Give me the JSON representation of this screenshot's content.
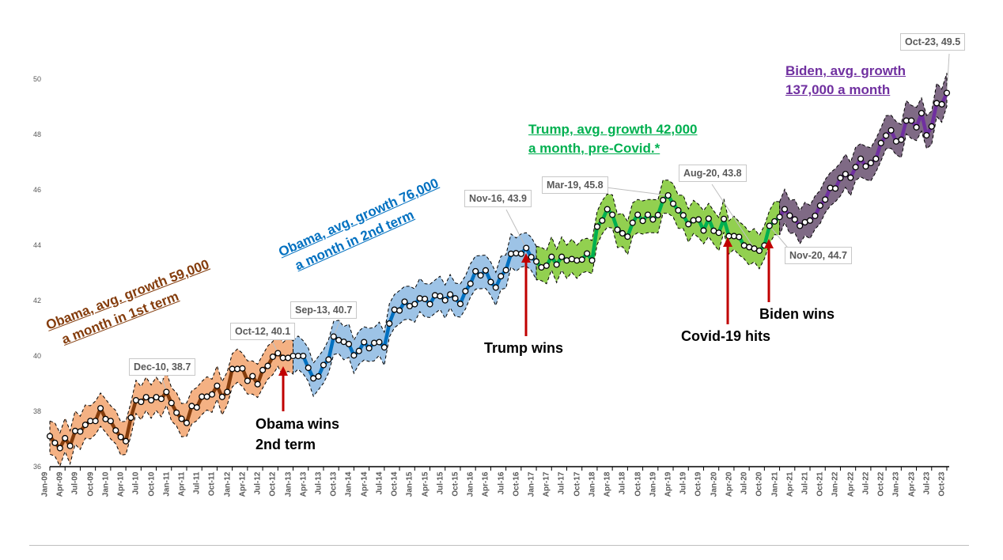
{
  "chart_data": {
    "type": "line",
    "title": "",
    "xlabel": "",
    "ylabel": "",
    "ylim": [
      36,
      50
    ],
    "y_ticks": [
      "36",
      "38",
      "40",
      "42",
      "44",
      "46",
      "48",
      "50"
    ],
    "x_labels": [
      "Jan-09",
      "Apr-09",
      "Jul-09",
      "Oct-09",
      "Jan-10",
      "Apr-10",
      "Jul-10",
      "Oct-10",
      "Jan-11",
      "Apr-11",
      "Jul-11",
      "Oct-11",
      "Jan-12",
      "Apr-12",
      "Jul-12",
      "Oct-12",
      "Jan-13",
      "Apr-13",
      "Jul-13",
      "Oct-13",
      "Jan-14",
      "Apr-14",
      "Jul-14",
      "Oct-14",
      "Jan-15",
      "Apr-15",
      "Jul-15",
      "Oct-15",
      "Jan-16",
      "Apr-16",
      "Jul-16",
      "Oct-16",
      "Jan-17",
      "Apr-17",
      "Jul-17",
      "Oct-17",
      "Jan-18",
      "Apr-18",
      "Jul-18",
      "Oct-18",
      "Jan-19",
      "Apr-19",
      "Jul-19",
      "Oct-19",
      "Jan-20",
      "Apr-20",
      "Jul-20",
      "Oct-20",
      "Jan-21",
      "Apr-21",
      "Jul-21",
      "Oct-21",
      "Jan-22",
      "Apr-22",
      "Jul-22",
      "Oct-22",
      "Jan-23",
      "Apr-23",
      "Jul-23",
      "Oct-23"
    ],
    "x_start": "Jan-09",
    "x_step": "monthly",
    "values": [
      37.1,
      36.86,
      36.67,
      37.03,
      36.75,
      37.29,
      37.27,
      37.51,
      37.65,
      37.65,
      38.11,
      37.72,
      37.65,
      37.31,
      37.07,
      36.92,
      37.77,
      38.4,
      38.34,
      38.51,
      38.4,
      38.51,
      38.45,
      38.7,
      38.3,
      37.95,
      37.73,
      37.58,
      38.19,
      38.14,
      38.53,
      38.53,
      38.61,
      38.92,
      38.52,
      38.7,
      39.53,
      39.53,
      39.55,
      39.1,
      39.27,
      38.98,
      39.49,
      39.64,
      39.97,
      40.1,
      39.93,
      39.93,
      40.0,
      40.0,
      40.0,
      39.57,
      39.19,
      39.26,
      39.67,
      39.87,
      40.7,
      40.57,
      40.51,
      40.43,
      40.02,
      40.18,
      40.5,
      40.28,
      40.47,
      40.5,
      40.31,
      41.17,
      41.67,
      41.64,
      41.96,
      41.8,
      41.87,
      42.08,
      42.06,
      41.87,
      42.19,
      42.16,
      42.01,
      42.22,
      42.08,
      41.88,
      42.34,
      42.61,
      43.06,
      42.91,
      43.09,
      42.67,
      42.47,
      42.88,
      43.1,
      43.69,
      43.71,
      43.69,
      43.9,
      43.57,
      43.41,
      43.2,
      43.26,
      43.58,
      43.3,
      43.58,
      43.45,
      43.5,
      43.45,
      43.48,
      43.7,
      43.45,
      44.67,
      44.89,
      45.3,
      45.1,
      44.56,
      44.43,
      44.31,
      44.81,
      45.1,
      44.88,
      45.1,
      44.93,
      45.09,
      45.63,
      45.8,
      45.5,
      45.26,
      45.08,
      44.76,
      44.9,
      44.93,
      44.53,
      44.96,
      44.52,
      44.45,
      44.95,
      44.33,
      44.33,
      44.3,
      43.99,
      43.93,
      43.88,
      43.8,
      43.99,
      44.7,
      44.86,
      45.02,
      45.3,
      45.07,
      44.93,
      44.7,
      44.83,
      44.89,
      45.06,
      45.43,
      45.65,
      46.07,
      46.05,
      46.43,
      46.57,
      46.44,
      46.82,
      47.12,
      46.85,
      46.97,
      47.12,
      47.69,
      47.96,
      48.15,
      47.75,
      47.81,
      48.5,
      48.5,
      48.26,
      48.77,
      47.97,
      48.29,
      49.13,
      49.09,
      49.5
    ],
    "band_halfwidth": 0.6,
    "segments": [
      {
        "name": "Obama 1st term",
        "start": 0,
        "end": 48,
        "line_color": "#843C0C",
        "band_color": "#F4B183"
      },
      {
        "name": "Obama 2nd term",
        "start": 48,
        "end": 96,
        "line_color": "#0070C0",
        "band_color": "#9DC3E6"
      },
      {
        "name": "Trump",
        "start": 96,
        "end": 144,
        "line_color": "#00B050",
        "band_color": "#92D050"
      },
      {
        "name": "Biden",
        "start": 144,
        "end": 177,
        "line_color": "#7030A0",
        "band_color": "#7F6A85"
      }
    ],
    "callouts": [
      {
        "id": "dec10",
        "text": "Dec-10,  38.7",
        "index": 23
      },
      {
        "id": "oct12",
        "text": "Oct-12,  40.1",
        "index": 45
      },
      {
        "id": "sep13",
        "text": "Sep-13,  40.7",
        "index": 56
      },
      {
        "id": "nov16",
        "text": "Nov-16,  43.9",
        "index": 94
      },
      {
        "id": "mar19",
        "text": "Mar-19,  45.8",
        "index": 122
      },
      {
        "id": "aug20",
        "text": "Aug-20,  43.8",
        "index": 139
      },
      {
        "id": "nov20",
        "text": "Nov-20,  44.7",
        "index": 142
      },
      {
        "id": "oct23",
        "text": "Oct-23,  49.5",
        "index": 177
      }
    ],
    "annotations": {
      "obama1": [
        "Obama, avg. growth 59,000",
        "a month in 1st  term"
      ],
      "obama2": [
        "Obama, avg. growth 76,000",
        "a month in 2nd term"
      ],
      "trump": [
        "Trump, avg. growth 42,000",
        "a month, pre-Covid.*"
      ],
      "biden": [
        "Biden, avg. growth ",
        "137,000 a month"
      ]
    },
    "events": [
      {
        "id": "obama",
        "lines": [
          "Obama wins",
          "2nd term"
        ],
        "index": 46
      },
      {
        "id": "trump",
        "lines": [
          "Trump wins"
        ],
        "index": 94
      },
      {
        "id": "covid",
        "lines": [
          "Covid-19 hits"
        ],
        "index": 134
      },
      {
        "id": "biden",
        "lines": [
          "Biden wins"
        ],
        "index": 142
      }
    ],
    "arrow_color": "#C00000"
  }
}
